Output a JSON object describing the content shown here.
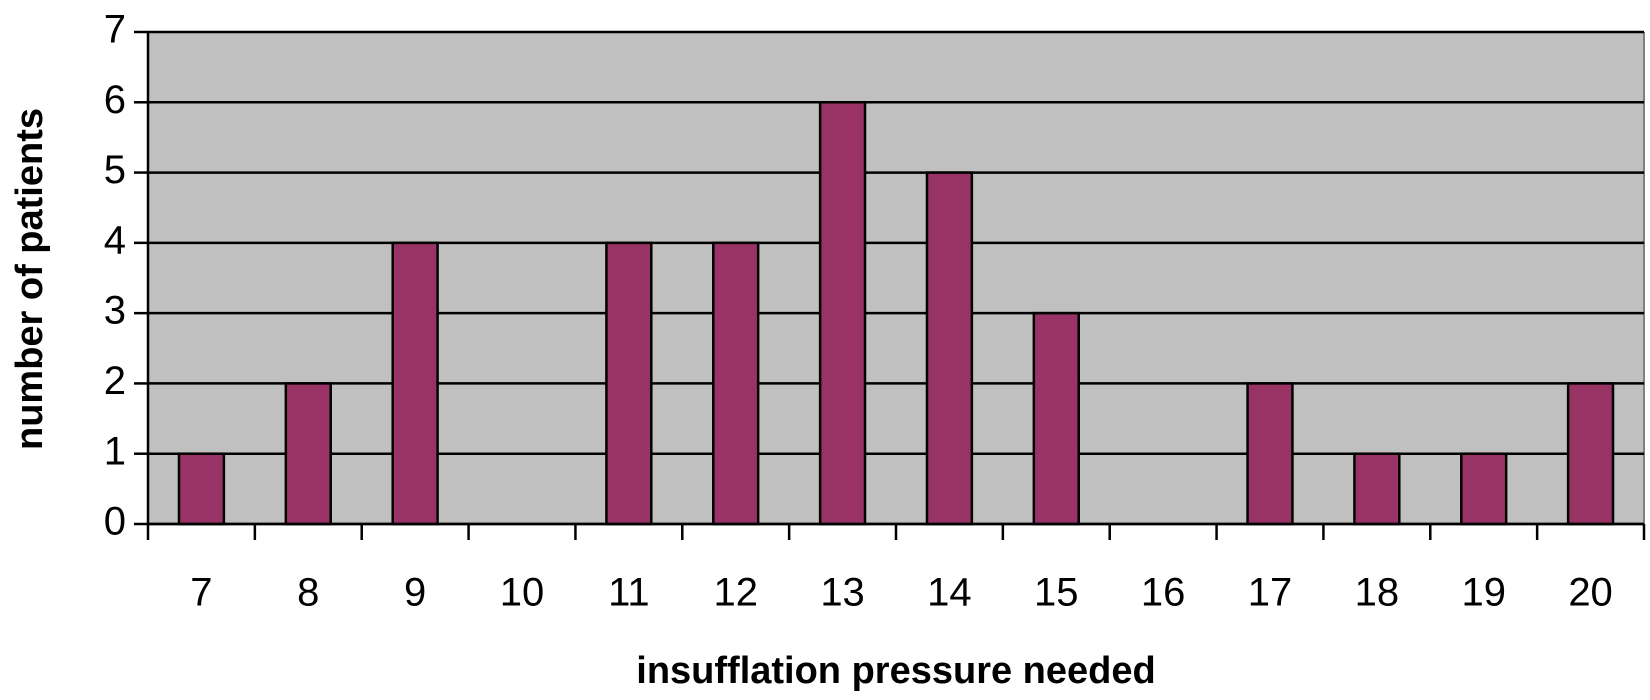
{
  "chart_data": {
    "type": "bar",
    "x_label": "insufflation pressure needed",
    "y_label": "number of patients",
    "categories": [
      "7",
      "8",
      "9",
      "10",
      "11",
      "12",
      "13",
      "14",
      "15",
      "16",
      "17",
      "18",
      "19",
      "20"
    ],
    "values": [
      1,
      2,
      4,
      0,
      4,
      4,
      6,
      5,
      3,
      0,
      2,
      1,
      1,
      2
    ],
    "color": "#993366",
    "ylim": [
      0,
      7
    ],
    "yticks": [
      0,
      1,
      2,
      3,
      4,
      5,
      6,
      7
    ],
    "grid": true
  }
}
